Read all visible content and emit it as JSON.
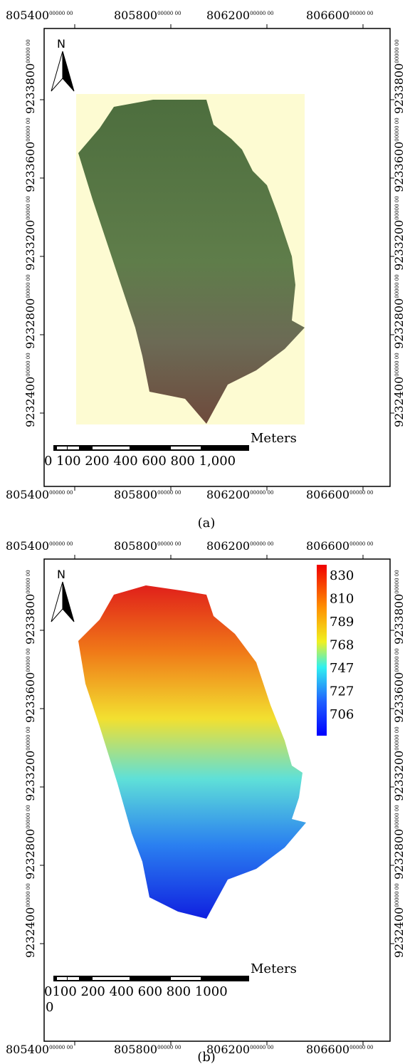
{
  "panels": [
    {
      "caption": "(a)",
      "north": "N",
      "coord_suffix": "00000 00",
      "x_labels": [
        "805400",
        "805800",
        "806200",
        "806600"
      ],
      "y_labels": [
        "9233800",
        "9233600",
        "9233200",
        "9232800",
        "9232400"
      ],
      "scale_bar": {
        "unit": "Meters",
        "labels": "0 100 200 400 600 800 1,000"
      }
    },
    {
      "caption": "(b)",
      "north": "N",
      "coord_suffix": "00000 00",
      "x_labels": [
        "805400",
        "805800",
        "806200",
        "806600"
      ],
      "y_labels": [
        "9233800",
        "9233600",
        "9233200",
        "9232800",
        "9232400"
      ],
      "scale_bar": {
        "unit": "Meters",
        "labels": "0100 200 400 600 800 1000",
        "extra": "0"
      },
      "legend": [
        "830",
        "810",
        "789",
        "768",
        "747",
        "727",
        "706"
      ]
    }
  ]
}
